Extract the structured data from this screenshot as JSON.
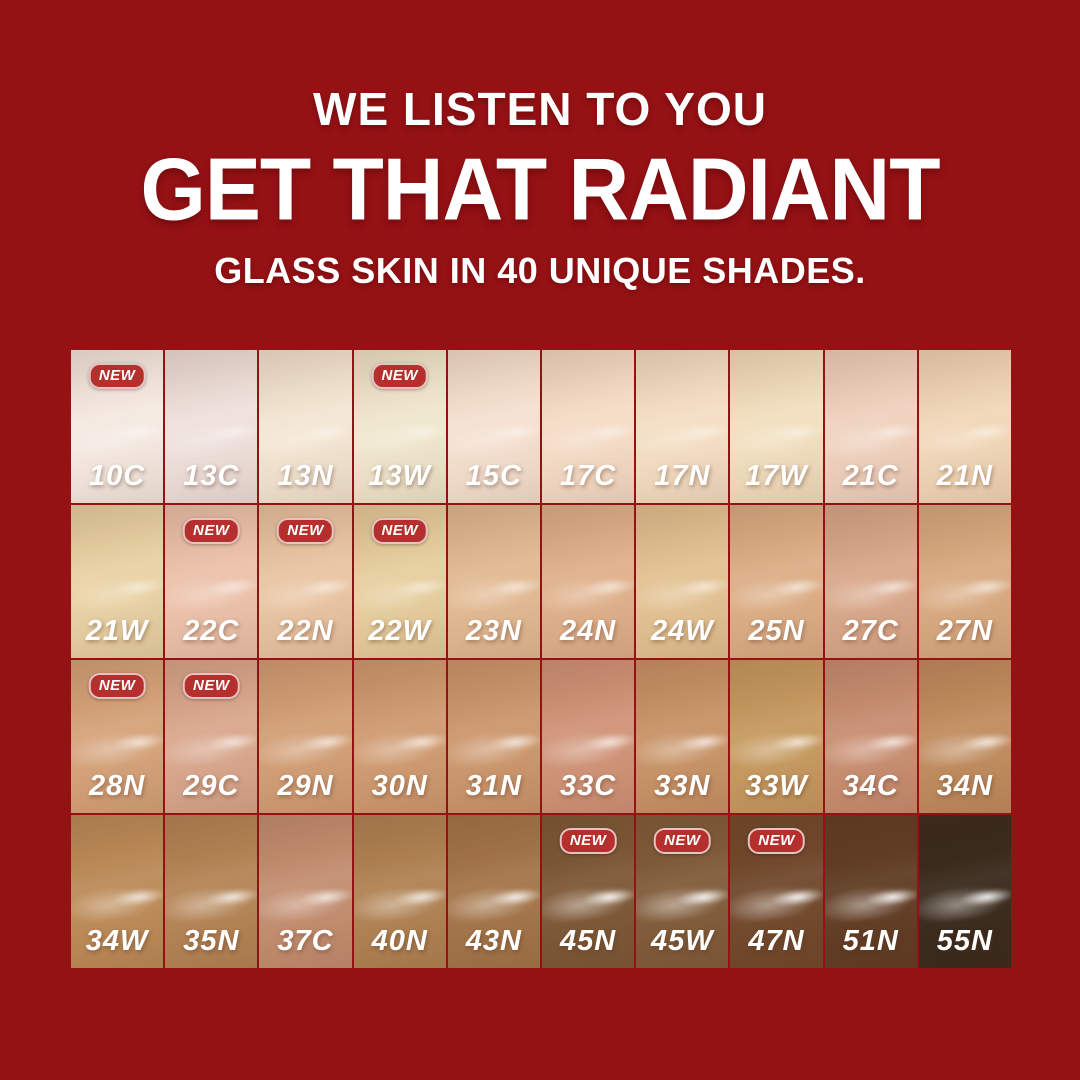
{
  "canvas": {
    "background": "#941114",
    "text_color": "#FFFFFF"
  },
  "header": {
    "line1": "WE LISTEN TO YOU",
    "line2": "GET THAT RADIANT",
    "line3": "GLASS SKIN IN 40 UNIQUE SHADES."
  },
  "badge": {
    "label": "NEW",
    "background": "#B5302C"
  },
  "shade_grid": {
    "rows": 4,
    "columns": 10,
    "shades": [
      {
        "code": "10C",
        "color": "#F5E9E1",
        "new": true
      },
      {
        "code": "13C",
        "color": "#EFE0DB",
        "new": false
      },
      {
        "code": "13N",
        "color": "#F3E5D2",
        "new": false
      },
      {
        "code": "13W",
        "color": "#F0E6CD",
        "new": true
      },
      {
        "code": "15C",
        "color": "#F5E0D0",
        "new": false
      },
      {
        "code": "17C",
        "color": "#F5DCC6",
        "new": false
      },
      {
        "code": "17N",
        "color": "#F4DEC3",
        "new": false
      },
      {
        "code": "17W",
        "color": "#F2DFBF",
        "new": false
      },
      {
        "code": "21C",
        "color": "#EFD2BE",
        "new": false
      },
      {
        "code": "21N",
        "color": "#F1D7B8",
        "new": false
      },
      {
        "code": "21W",
        "color": "#E9D2A4",
        "new": false
      },
      {
        "code": "22C",
        "color": "#ECC2AB",
        "new": true
      },
      {
        "code": "22N",
        "color": "#E9C5A2",
        "new": true
      },
      {
        "code": "22W",
        "color": "#E6CE9E",
        "new": true
      },
      {
        "code": "23N",
        "color": "#E2BA93",
        "new": false
      },
      {
        "code": "24N",
        "color": "#DFB18B",
        "new": false
      },
      {
        "code": "24W",
        "color": "#E3C293",
        "new": false
      },
      {
        "code": "25N",
        "color": "#DCAE86",
        "new": false
      },
      {
        "code": "27C",
        "color": "#D9A88B",
        "new": false
      },
      {
        "code": "27N",
        "color": "#D8AA81",
        "new": false
      },
      {
        "code": "28N",
        "color": "#D5A37A",
        "new": true
      },
      {
        "code": "29C",
        "color": "#D9A78D",
        "new": true
      },
      {
        "code": "29N",
        "color": "#D29F76",
        "new": false
      },
      {
        "code": "30N",
        "color": "#CF9B71",
        "new": false
      },
      {
        "code": "31N",
        "color": "#CC976D",
        "new": false
      },
      {
        "code": "33C",
        "color": "#D09478",
        "new": false
      },
      {
        "code": "33N",
        "color": "#C89367",
        "new": false
      },
      {
        "code": "33W",
        "color": "#C69A60",
        "new": false
      },
      {
        "code": "34C",
        "color": "#C88E71",
        "new": false
      },
      {
        "code": "34N",
        "color": "#C08C5F",
        "new": false
      },
      {
        "code": "34W",
        "color": "#BC8B58",
        "new": false
      },
      {
        "code": "35N",
        "color": "#B48455",
        "new": false
      },
      {
        "code": "37C",
        "color": "#C38E70",
        "new": false
      },
      {
        "code": "40N",
        "color": "#B08253",
        "new": false
      },
      {
        "code": "43N",
        "color": "#A47549",
        "new": false
      },
      {
        "code": "45N",
        "color": "#7D5836",
        "new": true
      },
      {
        "code": "45W",
        "color": "#805C3A",
        "new": true
      },
      {
        "code": "47N",
        "color": "#71492C",
        "new": true
      },
      {
        "code": "51N",
        "color": "#603D24",
        "new": false
      },
      {
        "code": "55N",
        "color": "#392A1C",
        "new": false
      }
    ]
  }
}
